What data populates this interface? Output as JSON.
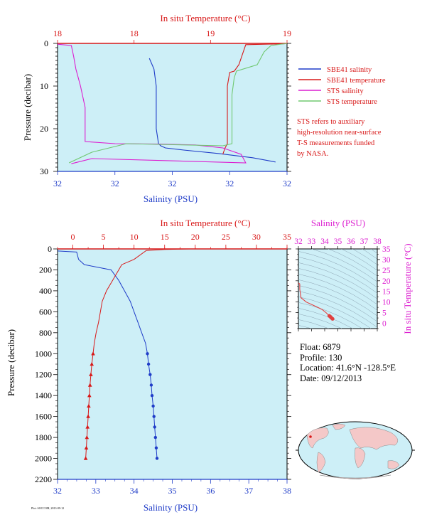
{
  "chart_data": [
    {
      "type": "line",
      "panel": "near-surface",
      "xlabel_bottom": "Salinity (PSU)",
      "xlabel_top": "In situ Temperature (°C)",
      "ylabel": "Pressure (decibar)",
      "salinity_ticks": [
        "32",
        "32",
        "32",
        "32",
        "32"
      ],
      "temperature_ticks": [
        "18",
        "18",
        "19",
        "19"
      ],
      "pressure_ticks": [
        "0",
        "10",
        "20",
        "30"
      ],
      "ylim": [
        0,
        30
      ],
      "grid": false,
      "legend_position": "right",
      "series": [
        {
          "name": "SBE41 salinity",
          "color": "#1f3cc8",
          "x": [
            0.4,
            0.42,
            0.43,
            0.43,
            0.43,
            0.44,
            0.45,
            0.47,
            0.55,
            0.7,
            0.85,
            0.95
          ],
          "y": [
            3.5,
            6,
            10,
            15,
            20,
            23.5,
            24,
            24.5,
            25,
            25.8,
            26.8,
            27.8
          ]
        },
        {
          "name": "SBE41 temperature",
          "color": "#d81818",
          "x": [
            0.99,
            0.82,
            0.79,
            0.77,
            0.75,
            0.74,
            0.74,
            0.74,
            0.73,
            0.72
          ],
          "y": [
            0.1,
            0.3,
            5,
            6.5,
            6.8,
            10,
            20,
            23.5,
            24.5,
            26
          ]
        },
        {
          "name": "STS salinity",
          "color": "#dc1ed0",
          "x": [
            0.0,
            0.06,
            0.07,
            0.08,
            0.1,
            0.12,
            0.12,
            0.25,
            0.45,
            0.6,
            0.72,
            0.8,
            0.82,
            0.15,
            0.06
          ],
          "y": [
            0.2,
            0.5,
            3,
            6,
            10,
            15,
            23,
            23.5,
            23.6,
            23.8,
            24.5,
            26,
            28,
            27,
            28.2
          ]
        },
        {
          "name": "STS temperature",
          "color": "#70c870",
          "x": [
            1.0,
            0.93,
            0.9,
            0.87,
            0.78,
            0.77,
            0.76,
            0.76,
            0.76,
            0.72,
            0.3,
            0.15,
            0.05
          ],
          "y": [
            0.0,
            0.5,
            2,
            5,
            6.5,
            8,
            12,
            20,
            23.5,
            24,
            23.5,
            25.5,
            28
          ]
        }
      ],
      "legend": [
        {
          "name": "SBE41 salinity",
          "color": "#1f3cc8"
        },
        {
          "name": "SBE41 temperature",
          "color": "#d81818"
        },
        {
          "name": "STS salinity",
          "color": "#dc1ed0"
        },
        {
          "name": "STS temperature",
          "color": "#70c870"
        }
      ],
      "annotation": [
        "STS refers to auxiliary",
        "high-resolution near-surface",
        "T-S measurements funded",
        "by NASA."
      ]
    },
    {
      "type": "line",
      "panel": "full-profile",
      "xlabel_bottom": "Salinity (PSU)",
      "xlabel_top": "In situ Temperature (°C)",
      "ylabel": "Pressure (decibar)",
      "xlim_salinity": [
        32,
        38
      ],
      "xlim_temperature": [
        -2.5,
        35
      ],
      "ylim": [
        0,
        2200
      ],
      "salinity_ticks": [
        "32",
        "33",
        "34",
        "35",
        "36",
        "37",
        "38"
      ],
      "temperature_ticks": [
        "0",
        "5",
        "10",
        "15",
        "20",
        "25",
        "30",
        "35"
      ],
      "pressure_ticks": [
        "0",
        "200",
        "400",
        "600",
        "800",
        "1000",
        "1200",
        "1400",
        "1600",
        "1800",
        "2000",
        "2200"
      ],
      "series": [
        {
          "name": "salinity",
          "color": "#1f3cc8",
          "values": [
            [
              32.0,
              20
            ],
            [
              32.5,
              30
            ],
            [
              32.55,
              100
            ],
            [
              32.7,
              150
            ],
            [
              33.4,
              200
            ],
            [
              33.6,
              300
            ],
            [
              33.75,
              400
            ],
            [
              33.9,
              500
            ],
            [
              34.0,
              600
            ],
            [
              34.1,
              700
            ],
            [
              34.2,
              800
            ],
            [
              34.3,
              900
            ],
            [
              34.35,
              1000
            ],
            [
              34.38,
              1100
            ],
            [
              34.42,
              1200
            ],
            [
              34.45,
              1300
            ],
            [
              34.47,
              1400
            ],
            [
              34.5,
              1500
            ],
            [
              34.52,
              1600
            ],
            [
              34.54,
              1700
            ],
            [
              34.56,
              1800
            ],
            [
              34.58,
              1900
            ],
            [
              34.6,
              2000
            ]
          ]
        },
        {
          "name": "temperature",
          "color": "#d81818",
          "values": [
            [
              19.0,
              0
            ],
            [
              15.0,
              5
            ],
            [
              12.0,
              15
            ],
            [
              10.0,
              100
            ],
            [
              8.0,
              150
            ],
            [
              7.5,
              200
            ],
            [
              6.5,
              300
            ],
            [
              5.5,
              400
            ],
            [
              4.8,
              500
            ],
            [
              4.5,
              600
            ],
            [
              4.2,
              700
            ],
            [
              3.8,
              800
            ],
            [
              3.5,
              900
            ],
            [
              3.3,
              1000
            ],
            [
              3.1,
              1100
            ],
            [
              2.95,
              1200
            ],
            [
              2.8,
              1300
            ],
            [
              2.7,
              1400
            ],
            [
              2.6,
              1500
            ],
            [
              2.5,
              1600
            ],
            [
              2.4,
              1700
            ],
            [
              2.3,
              1800
            ],
            [
              2.2,
              1900
            ],
            [
              2.1,
              2000
            ]
          ]
        }
      ]
    },
    {
      "type": "scatter",
      "panel": "t-s-diagram",
      "xlabel_top": "Salinity (PSU)",
      "ylabel_right": "In situ Temperature (°C)",
      "xlim": [
        32,
        38
      ],
      "ylim": [
        -2.5,
        35
      ],
      "salinity_ticks": [
        "32",
        "33",
        "34",
        "35",
        "36",
        "37",
        "38"
      ],
      "temperature_ticks": [
        "35",
        "30",
        "25",
        "20",
        "15",
        "10",
        "5",
        "0"
      ],
      "series": [
        {
          "name": "profile",
          "color": "#e04040",
          "values": [
            [
              32.0,
              19.0
            ],
            [
              32.1,
              18.5
            ],
            [
              32.1,
              16.0
            ],
            [
              32.2,
              12.0
            ],
            [
              32.6,
              10.0
            ],
            [
              33.3,
              8.0
            ],
            [
              33.8,
              6.5
            ],
            [
              34.1,
              5.0
            ],
            [
              34.35,
              3.5
            ],
            [
              34.45,
              3.0
            ],
            [
              34.5,
              2.6
            ],
            [
              34.6,
              2.1
            ]
          ]
        }
      ]
    }
  ],
  "info": {
    "float": "Float:  6879",
    "profile": "Profile:  130",
    "location": "Location:  41.6°N  -128.5°E",
    "date": "Date:  09/12/2013"
  },
  "footer": "Plot: SOCCOM, 2013-09-12"
}
